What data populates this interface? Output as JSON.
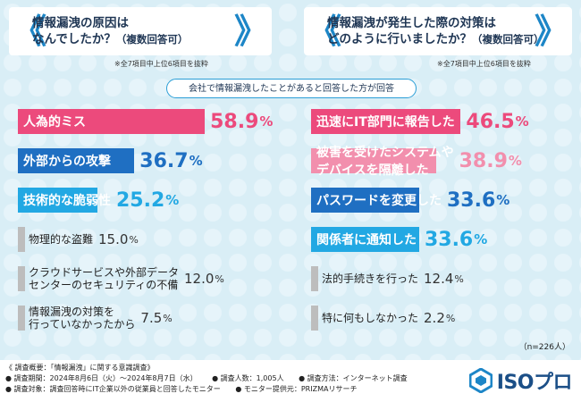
{
  "left": {
    "title_line1": "情報漏洩の原因は",
    "title_line2": "なんでしたか？",
    "title_sub": "（複数回答可）",
    "note": "※全7項目中上位6項目を抜粋"
  },
  "right": {
    "title_line1": "情報漏洩が発生した際の対策は",
    "title_line2": "どのように行いましたか？",
    "title_sub": "（複数回答可）",
    "note": "※全7項目中上位6項目を抜粋"
  },
  "banner": "会社で情報漏洩したことがあると回答した方が回答",
  "n_note": "（n=226人）",
  "chart_data": [
    {
      "type": "bar",
      "orientation": "horizontal",
      "categories": [
        "人為的ミス",
        "外部からの攻撃",
        "技術的な脆弱性",
        "物理的な盗難",
        "クラウドサービスや外部データセンターのセキュリティの不備",
        "情報漏洩の対策を行っていなかったから"
      ],
      "category_lines": [
        [
          "人為的ミス"
        ],
        [
          "外部からの攻撃"
        ],
        [
          "技術的な脆弱性"
        ],
        [
          "物理的な盗難"
        ],
        [
          "クラウドサービスや外部データ",
          "センターのセキュリティの不備"
        ],
        [
          "情報漏洩の対策を",
          "行っていなかったから"
        ]
      ],
      "values": [
        58.9,
        36.7,
        25.2,
        15.0,
        12.0,
        7.5
      ],
      "value_labels": [
        "58.9",
        "36.7",
        "25.2",
        "15.0",
        "12.0",
        "7.5"
      ],
      "unit": "%",
      "bar_colors": [
        "#ec4a7c",
        "#1f6fc2",
        "#22a8e3",
        "#bdbdbd",
        "#bdbdbd",
        "#bdbdbd"
      ],
      "value_colors": [
        "#ec4a7c",
        "#1f6fc2",
        "#22a8e3",
        "#333333",
        "#333333",
        "#333333"
      ],
      "xlim": [
        0,
        60
      ]
    },
    {
      "type": "bar",
      "orientation": "horizontal",
      "categories": [
        "迅速にIT部門に報告した",
        "被害を受けたシステムやデバイスを隔離した",
        "パスワードを変更した",
        "関係者に通知した",
        "法的手続きを行った",
        "特に何もしなかった"
      ],
      "category_lines": [
        [
          "迅速にIT部門に報告した"
        ],
        [
          "被害を受けたシステムや",
          "デバイスを隔離した"
        ],
        [
          "パスワードを変更した"
        ],
        [
          "関係者に通知した"
        ],
        [
          "法的手続きを行った"
        ],
        [
          "特に何もしなかった"
        ]
      ],
      "values": [
        46.5,
        38.9,
        33.6,
        33.6,
        12.4,
        2.2
      ],
      "value_labels": [
        "46.5",
        "38.9",
        "33.6",
        "33.6",
        "12.4",
        "2.2"
      ],
      "unit": "%",
      "bar_colors": [
        "#ec4a7c",
        "#f28fad",
        "#1f6fc2",
        "#22a8e3",
        "#bdbdbd",
        "#bdbdbd"
      ],
      "value_colors": [
        "#ec4a7c",
        "#f28fad",
        "#1f6fc2",
        "#22a8e3",
        "#333333",
        "#333333"
      ],
      "xlim": [
        0,
        60
      ]
    }
  ],
  "survey": {
    "heading": "《 調査概要：「情報漏洩」に関する意識調査》",
    "period": "● 調査期間：2024年8月6日（火）～2024年8月7日（水）",
    "count": "● 調査人数：1,005人",
    "method": "● 調査方法：インターネット調査",
    "target": "● 調査対象：調査回答時にIT企業以外の従業員と回答したモニター",
    "provider": "● モニター提供元：PRIZMAリサーチ"
  },
  "logo_text": "ISOプロ"
}
